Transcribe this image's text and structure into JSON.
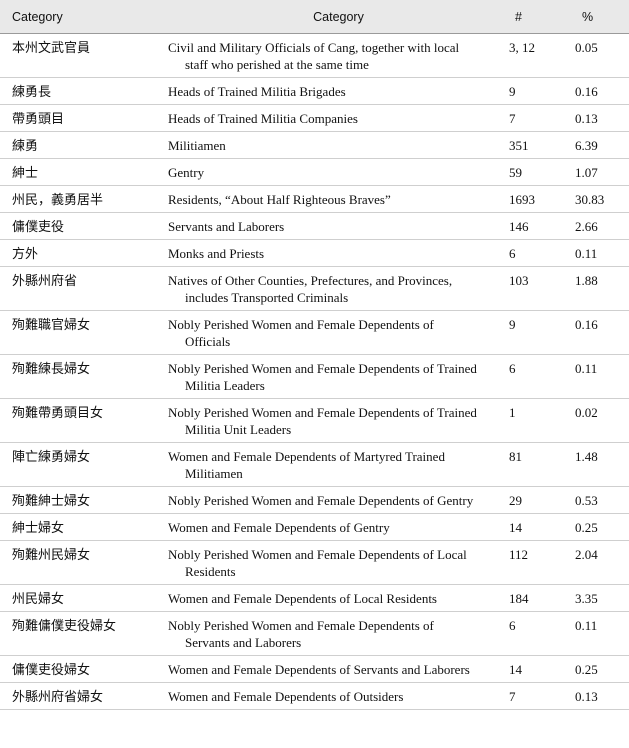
{
  "table": {
    "header": [
      "Category",
      "Category",
      "#",
      "%"
    ],
    "rows": [
      [
        "本州文武官員",
        "Civil and Military Officials of Cang, together with local staff who perished at the same time",
        "3, 12",
        "0.05"
      ],
      [
        "練勇長",
        "Heads of Trained Militia Brigades",
        "9",
        "0.16"
      ],
      [
        "帶勇頭目",
        "Heads of Trained Militia Companies",
        "7",
        "0.13"
      ],
      [
        "練勇",
        "Militiamen",
        "351",
        "6.39"
      ],
      [
        "紳士",
        "Gentry",
        "59",
        "1.07"
      ],
      [
        "州民，義勇居半",
        "Residents, “About Half Righteous Braves”",
        "1693",
        "30.83"
      ],
      [
        "傭僕吏役",
        "Servants and Laborers",
        "146",
        "2.66"
      ],
      [
        "方外",
        "Monks and Priests",
        "6",
        "0.11"
      ],
      [
        "外縣州府省",
        "Natives of Other Counties, Prefectures, and Provinces, includes Transported Criminals",
        "103",
        "1.88"
      ],
      [
        "殉難職官婦女",
        "Nobly Perished Women and Female Dependents of Officials",
        "9",
        "0.16"
      ],
      [
        "殉難練長婦女",
        "Nobly Perished Women and Female Dependents of Trained Militia Leaders",
        "6",
        "0.11"
      ],
      [
        "殉難帶勇頭目女",
        "Nobly Perished Women and Female Dependents of Trained Militia Unit Leaders",
        "1",
        "0.02"
      ],
      [
        "陣亡練勇婦女",
        "Women and Female Dependents of Martyred Trained Militiamen",
        "81",
        "1.48"
      ],
      [
        "殉難紳士婦女",
        "Nobly Perished Women and Female Dependents of Gentry",
        "29",
        "0.53"
      ],
      [
        "紳士婦女",
        "Women and Female Dependents of Gentry",
        "14",
        "0.25"
      ],
      [
        "殉難州民婦女",
        "Nobly Perished Women and Female Dependents of Local Residents",
        "112",
        "2.04"
      ],
      [
        "州民婦女",
        "Women and Female Dependents of Local Residents",
        "184",
        "3.35"
      ],
      [
        "殉難傭僕吏役婦女",
        "Nobly Perished Women and Female Dependents of Servants and Laborers",
        "6",
        "0.11"
      ],
      [
        "傭僕吏役婦女",
        "Women and Female Dependents of Servants and Laborers",
        "14",
        "0.25"
      ],
      [
        "外縣州府省婦女",
        "Women and Female Dependents of Outsiders",
        "7",
        "0.13"
      ]
    ]
  }
}
